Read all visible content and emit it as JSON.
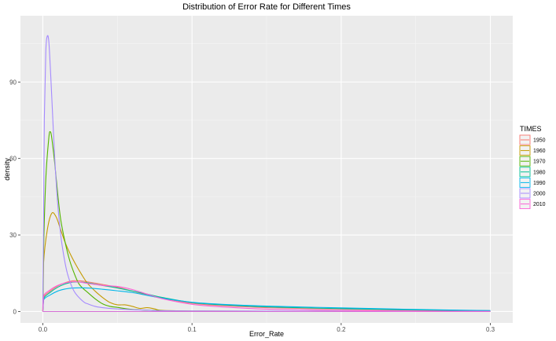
{
  "chart_data": {
    "type": "line",
    "title": "Distribution of Error Rate for Different Times",
    "xlabel": "Error_Rate",
    "ylabel": "density",
    "xlim": [
      -0.015,
      0.315
    ],
    "ylim": [
      -4.5,
      116
    ],
    "x_ticks": [
      {
        "value": 0.0,
        "label": "0.0"
      },
      {
        "value": 0.1,
        "label": "0.1"
      },
      {
        "value": 0.2,
        "label": "0.2"
      },
      {
        "value": 0.3,
        "label": "0.3"
      }
    ],
    "y_ticks": [
      {
        "value": 0,
        "label": "0"
      },
      {
        "value": 30,
        "label": "30"
      },
      {
        "value": 60,
        "label": "60"
      },
      {
        "value": 90,
        "label": "90"
      }
    ],
    "grid": true,
    "legend": {
      "title": "TIMES",
      "position": "right"
    },
    "series": [
      {
        "name": "1950",
        "color": "#F8766D",
        "points": [
          [
            0,
            0
          ],
          [
            0.0005,
            5.5
          ],
          [
            0.005,
            8
          ],
          [
            0.01,
            10
          ],
          [
            0.015,
            11.3
          ],
          [
            0.02,
            12
          ],
          [
            0.025,
            12
          ],
          [
            0.03,
            11.6
          ],
          [
            0.04,
            10.6
          ],
          [
            0.05,
            9.5
          ],
          [
            0.06,
            8
          ],
          [
            0.07,
            6.5
          ],
          [
            0.08,
            5.2
          ],
          [
            0.1,
            3.2
          ],
          [
            0.12,
            2.3
          ],
          [
            0.15,
            1.5
          ],
          [
            0.2,
            0.9
          ],
          [
            0.25,
            0.5
          ],
          [
            0.3,
            0.3
          ]
        ]
      },
      {
        "name": "1960",
        "color": "#C49A00",
        "points": [
          [
            0,
            0
          ],
          [
            0.0005,
            19
          ],
          [
            0.003,
            32
          ],
          [
            0.006,
            38.5
          ],
          [
            0.009,
            37
          ],
          [
            0.012,
            32
          ],
          [
            0.015,
            27
          ],
          [
            0.018,
            23
          ],
          [
            0.022,
            18.5
          ],
          [
            0.026,
            14.5
          ],
          [
            0.03,
            11
          ],
          [
            0.035,
            8
          ],
          [
            0.04,
            5.5
          ],
          [
            0.045,
            3.5
          ],
          [
            0.05,
            2.6
          ],
          [
            0.055,
            2.6
          ],
          [
            0.06,
            2
          ],
          [
            0.065,
            1.2
          ],
          [
            0.07,
            1.5
          ],
          [
            0.075,
            1
          ],
          [
            0.08,
            0.4
          ],
          [
            0.1,
            0.2
          ],
          [
            0.15,
            0.1
          ],
          [
            0.3,
            0
          ]
        ]
      },
      {
        "name": "1970",
        "color": "#53B400",
        "points": [
          [
            0,
            0
          ],
          [
            0.0005,
            24
          ],
          [
            0.002,
            52
          ],
          [
            0.004,
            68
          ],
          [
            0.005,
            70.5
          ],
          [
            0.006,
            68
          ],
          [
            0.008,
            58
          ],
          [
            0.01,
            46
          ],
          [
            0.012,
            36
          ],
          [
            0.015,
            27
          ],
          [
            0.018,
            20
          ],
          [
            0.021,
            15
          ],
          [
            0.024,
            11
          ],
          [
            0.027,
            9
          ],
          [
            0.03,
            7.5
          ],
          [
            0.035,
            5
          ],
          [
            0.04,
            3
          ],
          [
            0.045,
            2
          ],
          [
            0.05,
            1.6
          ],
          [
            0.06,
            0.8
          ],
          [
            0.08,
            0.3
          ],
          [
            0.1,
            0.1
          ],
          [
            0.3,
            0
          ]
        ]
      },
      {
        "name": "1980",
        "color": "#00C094",
        "points": [
          [
            0,
            0
          ],
          [
            0.0005,
            5
          ],
          [
            0.005,
            7.5
          ],
          [
            0.01,
            9.5
          ],
          [
            0.015,
            10.8
          ],
          [
            0.02,
            11.5
          ],
          [
            0.025,
            11.5
          ],
          [
            0.03,
            11.2
          ],
          [
            0.04,
            10.2
          ],
          [
            0.05,
            9.2
          ],
          [
            0.06,
            8
          ],
          [
            0.07,
            6.8
          ],
          [
            0.08,
            5.5
          ],
          [
            0.1,
            3.5
          ],
          [
            0.12,
            2.6
          ],
          [
            0.15,
            1.8
          ],
          [
            0.2,
            1.1
          ],
          [
            0.25,
            0.6
          ],
          [
            0.3,
            0.3
          ]
        ]
      },
      {
        "name": "1990",
        "color": "#00B6EB",
        "points": [
          [
            0,
            0
          ],
          [
            0.0005,
            4.5
          ],
          [
            0.005,
            6.5
          ],
          [
            0.01,
            8
          ],
          [
            0.015,
            8.8
          ],
          [
            0.02,
            9.2
          ],
          [
            0.03,
            9.2
          ],
          [
            0.04,
            8.7
          ],
          [
            0.05,
            8.1
          ],
          [
            0.06,
            7.4
          ],
          [
            0.07,
            6.3
          ],
          [
            0.08,
            5.2
          ],
          [
            0.1,
            3.6
          ],
          [
            0.12,
            2.8
          ],
          [
            0.15,
            2.1
          ],
          [
            0.2,
            1.4
          ],
          [
            0.25,
            0.8
          ],
          [
            0.3,
            0.35
          ]
        ]
      },
      {
        "name": "2000",
        "color": "#A58AFF",
        "points": [
          [
            0,
            0
          ],
          [
            0.0005,
            38
          ],
          [
            0.001,
            75
          ],
          [
            0.002,
            102
          ],
          [
            0.003,
            108
          ],
          [
            0.004,
            106
          ],
          [
            0.005,
            96
          ],
          [
            0.006,
            84
          ],
          [
            0.008,
            60
          ],
          [
            0.01,
            42
          ],
          [
            0.012,
            30
          ],
          [
            0.014,
            22
          ],
          [
            0.016,
            16
          ],
          [
            0.018,
            12
          ],
          [
            0.02,
            9
          ],
          [
            0.022,
            7
          ],
          [
            0.025,
            5
          ],
          [
            0.028,
            3.5
          ],
          [
            0.03,
            3
          ],
          [
            0.035,
            2
          ],
          [
            0.04,
            1.5
          ],
          [
            0.05,
            1
          ],
          [
            0.07,
            0.5
          ],
          [
            0.1,
            0.2
          ],
          [
            0.3,
            0
          ]
        ]
      },
      {
        "name": "2010",
        "color": "#FB61D7",
        "points": [
          [
            0,
            0
          ],
          [
            0.0005,
            6
          ],
          [
            0.005,
            8.5
          ],
          [
            0.01,
            10.2
          ],
          [
            0.015,
            11.2
          ],
          [
            0.02,
            11.6
          ],
          [
            0.025,
            11.5
          ],
          [
            0.03,
            11
          ],
          [
            0.04,
            10.2
          ],
          [
            0.05,
            9.8
          ],
          [
            0.06,
            8.6
          ],
          [
            0.07,
            6.8
          ],
          [
            0.08,
            5
          ],
          [
            0.1,
            2.8
          ],
          [
            0.12,
            1.8
          ],
          [
            0.15,
            0.9
          ],
          [
            0.2,
            0.4
          ],
          [
            0.25,
            0.15
          ],
          [
            0.3,
            0.05
          ]
        ]
      }
    ]
  }
}
